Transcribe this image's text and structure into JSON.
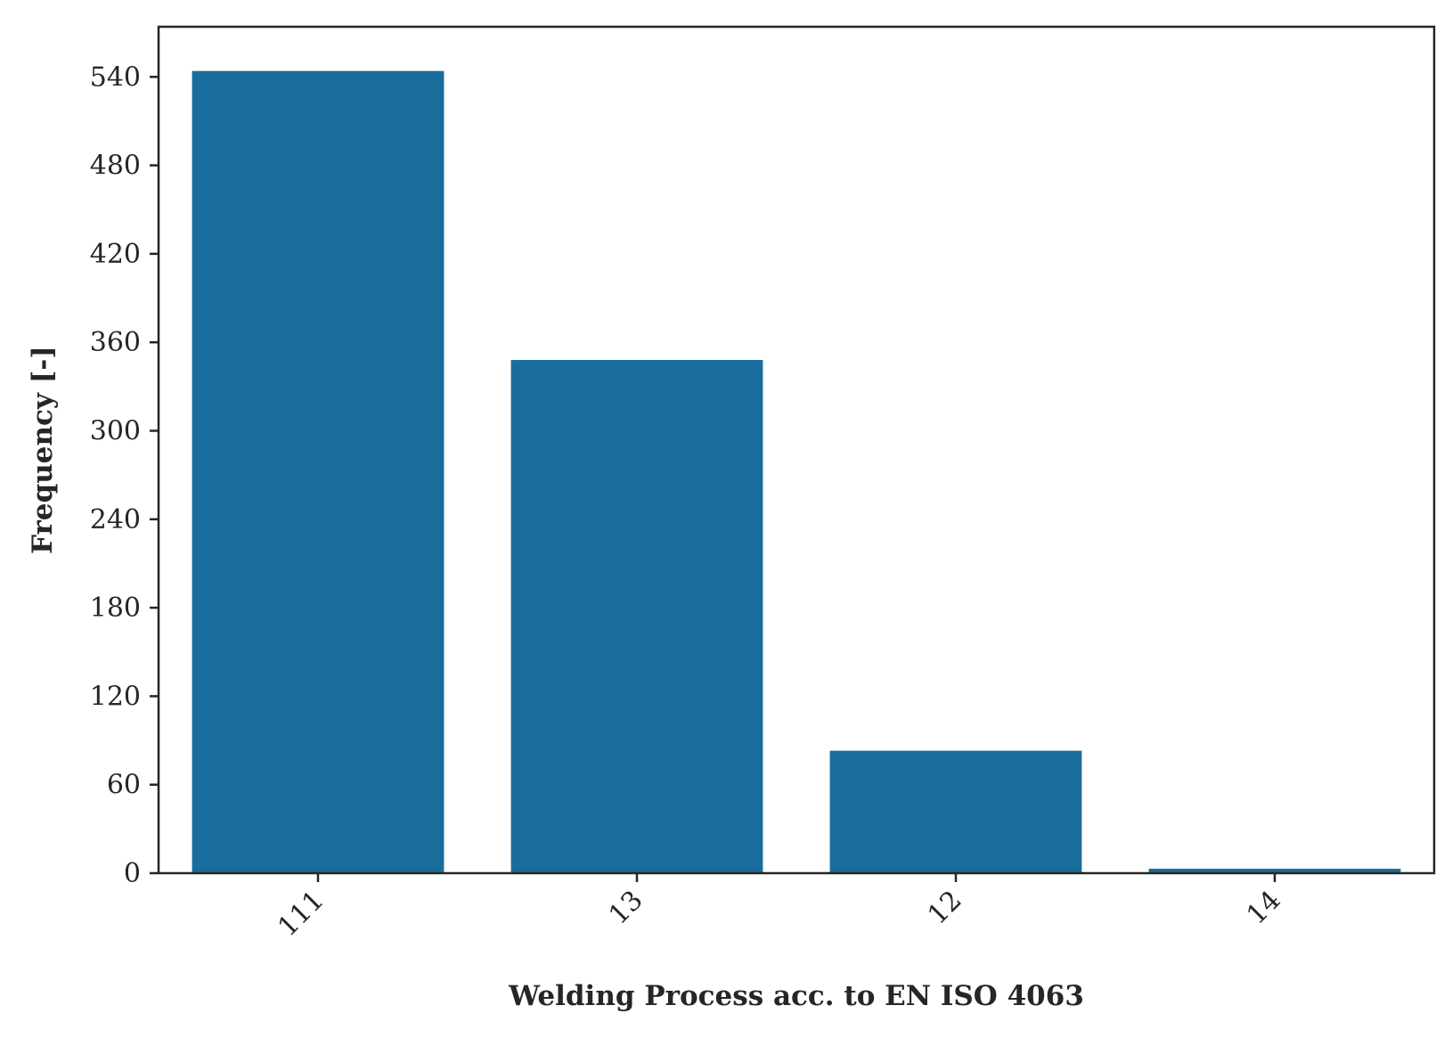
{
  "chart_data": {
    "type": "bar",
    "categories": [
      "111",
      "13",
      "12",
      "14"
    ],
    "values": [
      544,
      348,
      83,
      3
    ],
    "xlabel": "Welding Process acc. to EN ISO 4063",
    "ylabel": "Frequency [-]",
    "ylim": [
      0,
      574
    ],
    "yticks": [
      0,
      60,
      120,
      180,
      240,
      300,
      360,
      420,
      480,
      540
    ],
    "grid": false,
    "bar_color": "#186d9c",
    "axis_color": "#262626"
  }
}
